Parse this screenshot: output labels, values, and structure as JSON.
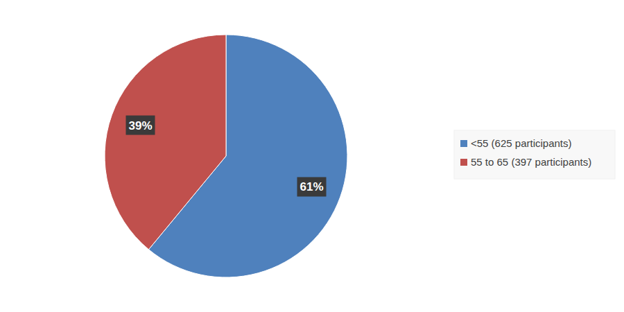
{
  "chart_data": {
    "type": "pie",
    "categories": [
      "<55 (625 participants)",
      "55 to 65 (397 participants)"
    ],
    "values": [
      61,
      39
    ],
    "value_labels": [
      "61%",
      "39%"
    ],
    "colors": [
      "#4f81bd",
      "#c0504d"
    ],
    "data_labels": true,
    "legend": "right"
  }
}
